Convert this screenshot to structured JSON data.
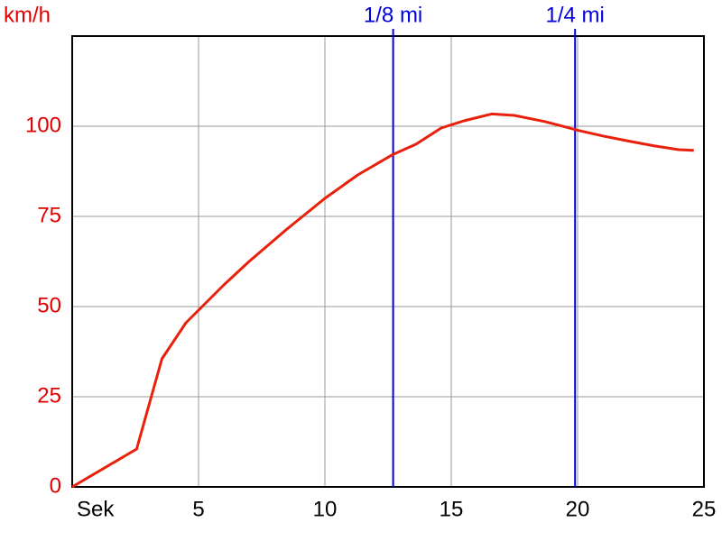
{
  "chart_data": {
    "type": "line",
    "y_label": "km/h",
    "x": [
      0,
      2.55,
      3.55,
      4.5,
      5,
      6,
      7,
      8.5,
      10,
      11.3,
      12.7,
      13.6,
      14.6,
      15.5,
      16.6,
      17.5,
      18.7,
      20,
      21,
      22,
      23,
      24,
      24.6
    ],
    "values": [
      0,
      10.5,
      35.5,
      45.5,
      49,
      56,
      62.5,
      71.5,
      80,
      86.5,
      92.2,
      95,
      99.5,
      101.5,
      103.4,
      103,
      101.3,
      98.9,
      97.3,
      95.9,
      94.6,
      93.5,
      93.3
    ],
    "color": "#e8200c",
    "xlim": [
      0,
      25
    ],
    "ylim": [
      0,
      125
    ],
    "xticks": [
      {
        "value": 0,
        "label": "Sek"
      },
      5,
      10,
      15,
      20,
      25
    ],
    "yticks": [
      0,
      25,
      50,
      75,
      100
    ],
    "grid": true,
    "axis_color": "#e00000",
    "markers": [
      {
        "label": "1/8 mi",
        "x": 12.7,
        "color": "#0000e0"
      },
      {
        "label": "1/4 mi",
        "x": 19.9,
        "color": "#0000e0"
      }
    ]
  }
}
